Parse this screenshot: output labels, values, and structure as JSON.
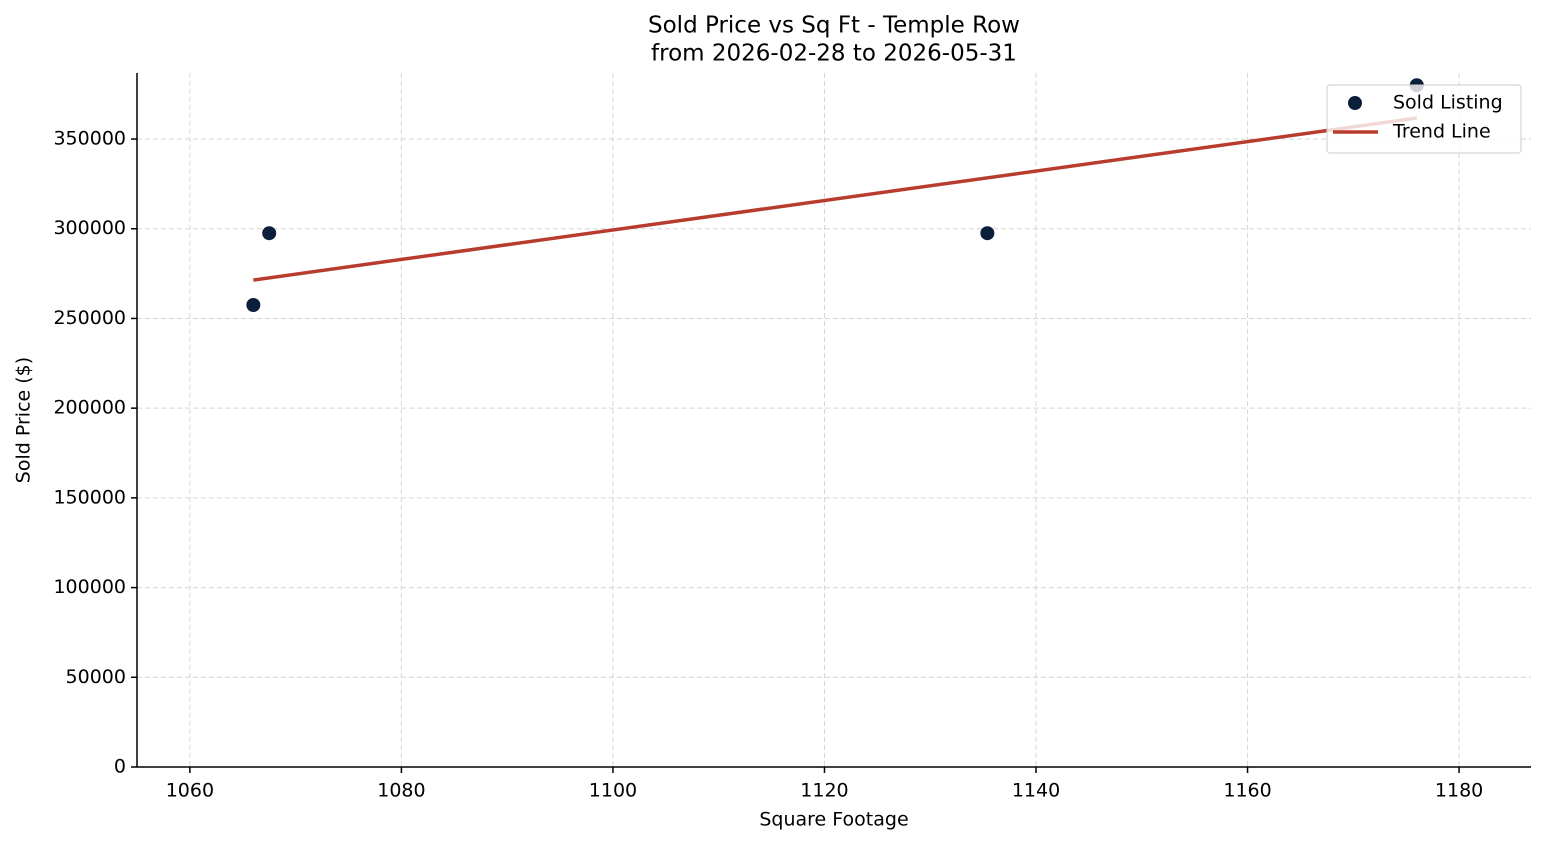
{
  "chart_data": {
    "type": "scatter",
    "title": "Sold Price vs Sq Ft - Temple Row",
    "subtitle": "from 2026-02-28 to 2026-05-31",
    "x_label": "Square Footage",
    "y_label": "Sold Price ($)",
    "xlim": [
      1055,
      1186.8
    ],
    "xticks": [
      1060,
      1080,
      1100,
      1120,
      1140,
      1160,
      1180
    ],
    "ylim": [
      0,
      386800
    ],
    "yticks": [
      0,
      50000,
      100000,
      150000,
      200000,
      250000,
      300000,
      350000
    ],
    "grid": true,
    "legend": "upper right",
    "series": [
      {
        "name": "Sold Listing",
        "type": "scatter",
        "color": "#0b1f3a",
        "x": [
          1066,
          1067.5,
          1135.4,
          1176
        ],
        "values": [
          257500,
          297500,
          297500,
          380000
        ]
      },
      {
        "name": "Trend Line",
        "type": "line",
        "color": "#b83c2e",
        "x": [
          1066,
          1176
        ],
        "values": [
          271400,
          361700
        ]
      }
    ]
  }
}
